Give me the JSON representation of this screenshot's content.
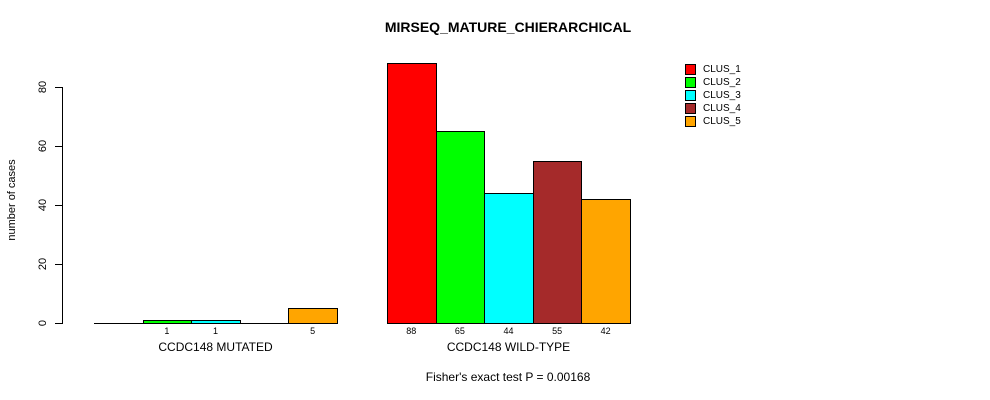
{
  "title": "MIRSEQ_MATURE_CHIERARCHICAL",
  "footer": "Fisher's exact test P = 0.00168",
  "chart_data": {
    "type": "bar",
    "title": "MIRSEQ_MATURE_CHIERARCHICAL",
    "ylabel": "number of cases",
    "xlabel": "",
    "ylim": [
      0,
      88
    ],
    "yticks": [
      0,
      20,
      40,
      60,
      80
    ],
    "grid": false,
    "legend_position": "top-right",
    "categories": [
      "CCDC148 MUTATED",
      "CCDC148 WILD-TYPE"
    ],
    "series": [
      {
        "name": "CLUS_1",
        "color": "#FF0000",
        "values": [
          0,
          88
        ]
      },
      {
        "name": "CLUS_2",
        "color": "#00FF00",
        "values": [
          1,
          65
        ]
      },
      {
        "name": "CLUS_3",
        "color": "#00FFFF",
        "values": [
          1,
          44
        ]
      },
      {
        "name": "CLUS_4",
        "color": "#A52A2A",
        "values": [
          0,
          55
        ]
      },
      {
        "name": "CLUS_5",
        "color": "#FFA500",
        "values": [
          5,
          42
        ]
      }
    ],
    "bar_value_label_rule": "value shown under bar only when value > 0",
    "annotation": "Fisher's exact test P = 0.00168"
  }
}
